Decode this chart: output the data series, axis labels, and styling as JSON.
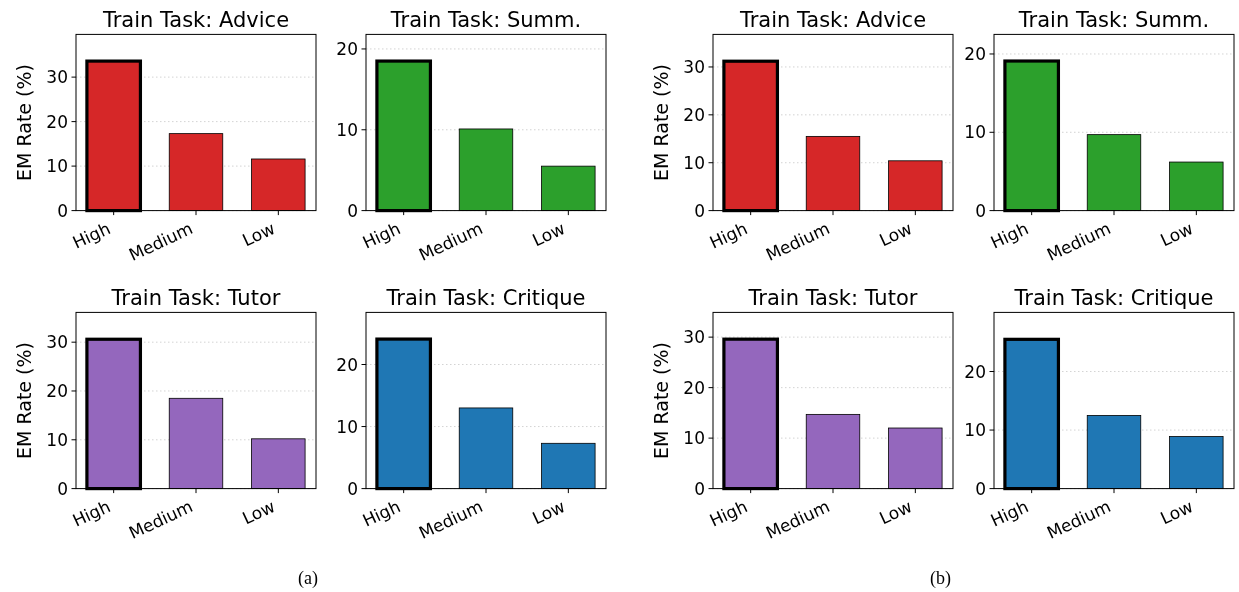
{
  "chart_data": [
    {
      "type": "bar",
      "title": "Train Task: Advice",
      "ylabel": "EM Rate (%)",
      "categories": [
        "High",
        "Medium",
        "Low"
      ],
      "values": [
        33.6,
        17.3,
        11.6
      ],
      "color": "#d62728",
      "ylim": [
        0,
        39.6
      ],
      "yticks": [
        0,
        10,
        20,
        30
      ],
      "grid": "y"
    },
    {
      "type": "bar",
      "title": "Train Task: Summ.",
      "categories": [
        "High",
        "Medium",
        "Low"
      ],
      "values": [
        18.5,
        10.1,
        5.5
      ],
      "color": "#2ca02c",
      "ylim": [
        0,
        21.8
      ],
      "yticks": [
        0,
        10,
        20
      ],
      "grid": "y"
    },
    {
      "type": "bar",
      "title": "Train Task: Advice",
      "ylabel": "EM Rate (%)",
      "categories": [
        "High",
        "Medium",
        "Low"
      ],
      "values": [
        31.2,
        15.5,
        10.4
      ],
      "color": "#d62728",
      "ylim": [
        0,
        36.8
      ],
      "yticks": [
        0,
        10,
        20,
        30
      ],
      "grid": "y"
    },
    {
      "type": "bar",
      "title": "Train Task: Summ.",
      "categories": [
        "High",
        "Medium",
        "Low"
      ],
      "values": [
        19.1,
        9.7,
        6.2
      ],
      "color": "#2ca02c",
      "ylim": [
        0,
        22.5
      ],
      "yticks": [
        0,
        10,
        20
      ],
      "grid": "y"
    },
    {
      "type": "bar",
      "title": "Train Task: Tutor",
      "ylabel": "EM Rate (%)",
      "categories": [
        "High",
        "Medium",
        "Low"
      ],
      "values": [
        30.6,
        18.5,
        10.2
      ],
      "color": "#9467bd",
      "ylim": [
        0,
        36.1
      ],
      "yticks": [
        0,
        10,
        20,
        30
      ],
      "grid": "y",
      "annotations": [
        "(a)"
      ]
    },
    {
      "type": "bar",
      "title": "Train Task: Critique",
      "categories": [
        "High",
        "Medium",
        "Low"
      ],
      "values": [
        24.1,
        13.0,
        7.3
      ],
      "color": "#1f77b4",
      "ylim": [
        0,
        28.4
      ],
      "yticks": [
        0,
        10,
        20
      ],
      "grid": "y"
    },
    {
      "type": "bar",
      "title": "Train Task: Tutor",
      "ylabel": "EM Rate (%)",
      "categories": [
        "High",
        "Medium",
        "Low"
      ],
      "values": [
        29.6,
        14.7,
        12.0
      ],
      "color": "#9467bd",
      "ylim": [
        0,
        34.9
      ],
      "yticks": [
        0,
        10,
        20,
        30
      ],
      "grid": "y",
      "annotations": [
        "(b)"
      ]
    },
    {
      "type": "bar",
      "title": "Train Task: Critique",
      "categories": [
        "High",
        "Medium",
        "Low"
      ],
      "values": [
        25.5,
        12.5,
        8.9
      ],
      "color": "#1f77b4",
      "ylim": [
        0,
        30.1
      ],
      "yticks": [
        0,
        10,
        20
      ],
      "grid": "y"
    }
  ]
}
